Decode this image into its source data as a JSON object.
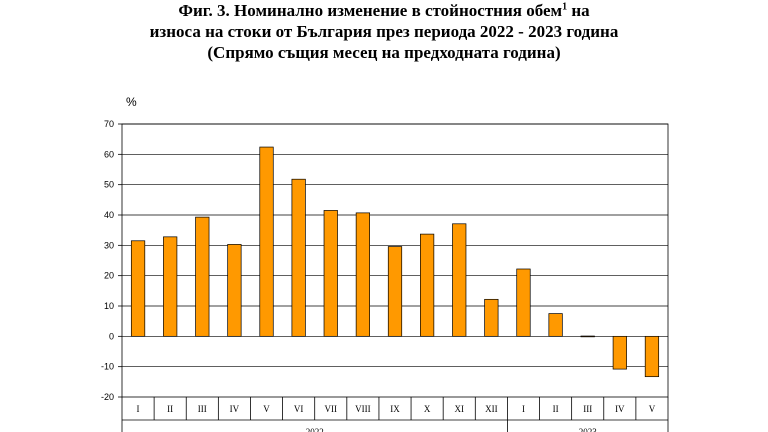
{
  "title": {
    "line1_pre": "Фиг. 3. Номинално изменение в стойностния обем",
    "line1_sup": "1",
    "line1_post": " на",
    "line2": "износа на стоки от България през периода 2022 - 2023 година",
    "line3": "(Спрямо същия месец на предходната година)"
  },
  "chart_data": {
    "type": "bar",
    "ylabel": "%",
    "ylim": [
      -20,
      70
    ],
    "yticks": [
      -20,
      -10,
      0,
      10,
      20,
      30,
      40,
      50,
      60,
      70
    ],
    "grid": true,
    "bar_color": "#FF9900",
    "categories": [
      "I",
      "II",
      "III",
      "IV",
      "V",
      "VI",
      "VII",
      "VIII",
      "IX",
      "X",
      "XI",
      "XII",
      "I",
      "II",
      "III",
      "IV",
      "V"
    ],
    "values": [
      31.5,
      32.8,
      39.3,
      30.3,
      62.4,
      51.8,
      41.5,
      40.7,
      29.6,
      33.7,
      37.1,
      12.2,
      22.2,
      7.5,
      0.1,
      -10.8,
      -13.3
    ],
    "groups": [
      {
        "label": "2022",
        "start": 0,
        "end": 11
      },
      {
        "label": "2023",
        "start": 12,
        "end": 16
      }
    ]
  }
}
